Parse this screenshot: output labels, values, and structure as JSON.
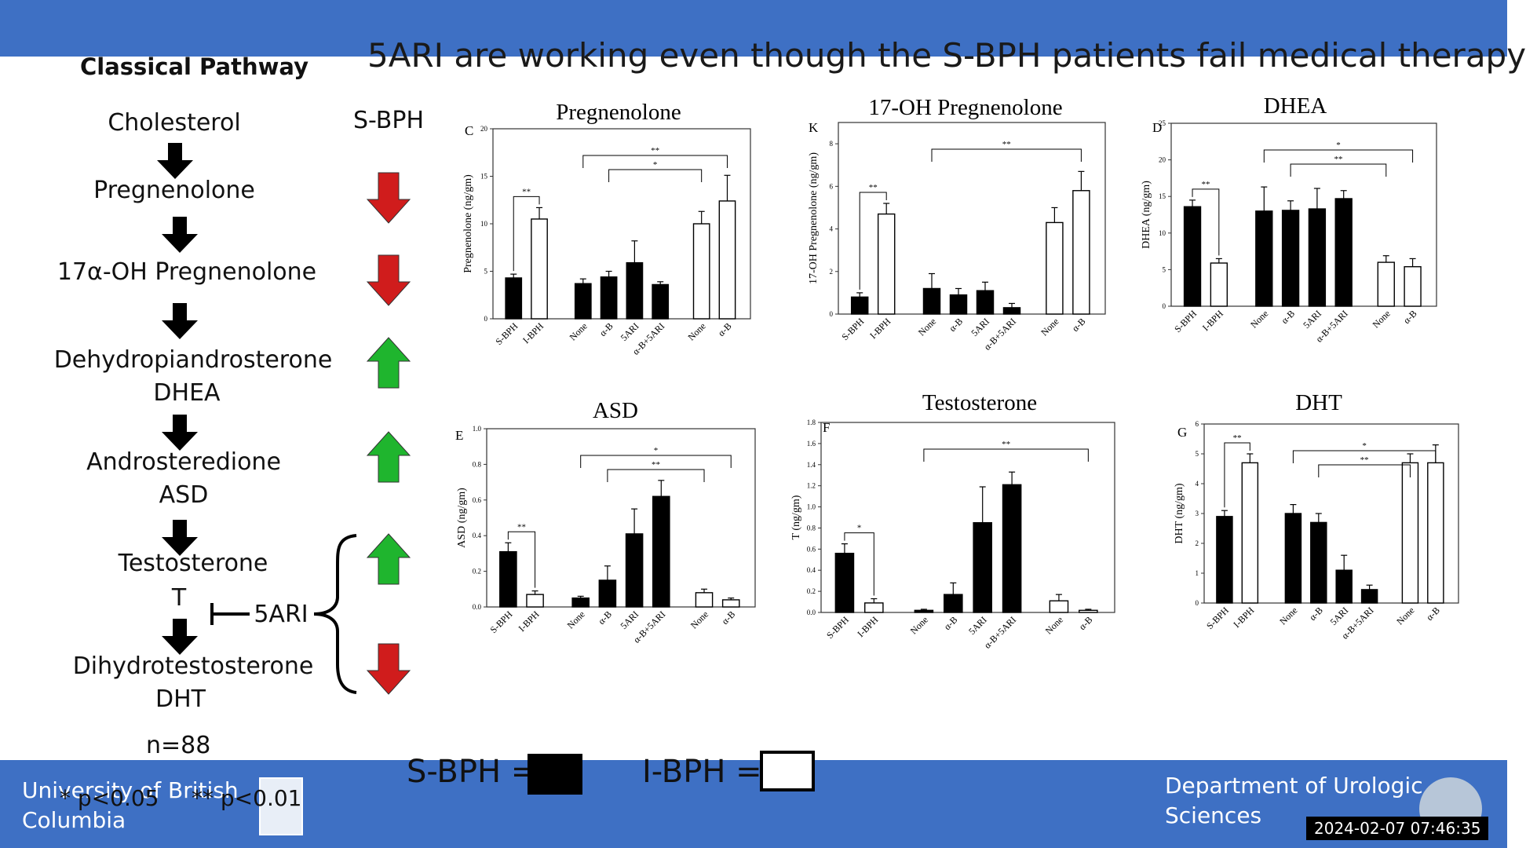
{
  "title": "5ARI are working even though the S-BPH patients fail medical therapy",
  "pathway": {
    "heading": "Classical Pathway",
    "steps": [
      {
        "line1": "Cholesterol"
      },
      {
        "line1": "Pregnenolone"
      },
      {
        "line1": "17α-OH Pregnenolone"
      },
      {
        "line1": "Dehydropiandrosterone",
        "line2": "DHEA"
      },
      {
        "line1": "Androsteredione",
        "line2": "ASD"
      },
      {
        "line1": "Testosterone",
        "line2": "T"
      },
      {
        "line1": "Dihydrotestosterone",
        "line2": "DHT"
      }
    ],
    "inhibitor_label": "5ARI",
    "n_label": "n=88"
  },
  "sbph": {
    "heading": "S-BPH",
    "trends": [
      "down",
      "down",
      "up",
      "up",
      "up",
      "down"
    ],
    "colors": {
      "down": "#d01c1c",
      "up": "#1fb52e"
    }
  },
  "legend": {
    "sbph_label": "S-BPH =",
    "ibph_label": "I-BPH =",
    "p1": "* p<0.05",
    "p2": "** p<0.01"
  },
  "footer": {
    "university_line1": "University of British",
    "university_line2": "Columbia",
    "dept_line1": "Department of Urologic",
    "dept_line2": "Sciences",
    "timestamp": "2024-02-07  07:46:35"
  },
  "chart_data": [
    {
      "type": "bar",
      "panel": "C",
      "title": "Pregnenolone",
      "ylabel": "Pregnenolone (ng/gm)",
      "ylim": [
        0,
        20
      ],
      "yticks": [
        0,
        5,
        10,
        15,
        20
      ],
      "categories": [
        "S-BPH",
        "I-BPH",
        "None",
        "α-B",
        "5ARI",
        "α-B+5ARI",
        "None",
        "α-B"
      ],
      "values": [
        4.3,
        10.5,
        3.7,
        4.4,
        5.9,
        3.6,
        10.0,
        12.4
      ],
      "errors": [
        0.4,
        1.2,
        0.5,
        0.6,
        2.3,
        0.3,
        1.3,
        2.7
      ],
      "fills": [
        "S",
        "I",
        "S",
        "S",
        "S",
        "S",
        "I",
        "I"
      ],
      "annotations": [
        "**",
        "**",
        "*"
      ]
    },
    {
      "type": "bar",
      "panel": "K",
      "title": "17-OH Pregnenolone",
      "ylabel": "17-OH Pregnenolone (ng/gm)",
      "ylim": [
        0,
        9
      ],
      "yticks": [
        0,
        2,
        4,
        6,
        8
      ],
      "categories": [
        "S-BPH",
        "I-BPH",
        "None",
        "α-B",
        "5ARI",
        "α-B+5ARI",
        "None",
        "α-B"
      ],
      "values": [
        0.8,
        4.7,
        1.2,
        0.9,
        1.1,
        0.3,
        4.3,
        5.8
      ],
      "errors": [
        0.2,
        0.5,
        0.7,
        0.3,
        0.4,
        0.2,
        0.7,
        0.9
      ],
      "fills": [
        "S",
        "I",
        "S",
        "S",
        "S",
        "S",
        "I",
        "I"
      ],
      "annotations": [
        "**",
        "**"
      ]
    },
    {
      "type": "bar",
      "panel": "D",
      "title": "DHEA",
      "ylabel": "DHEA (ng/gm)",
      "ylim": [
        0,
        25
      ],
      "yticks": [
        0,
        5,
        10,
        15,
        20,
        25
      ],
      "categories": [
        "S-BPH",
        "I-BPH",
        "None",
        "α-B",
        "5ARI",
        "α-B+5ARI",
        "None",
        "α-B"
      ],
      "values": [
        13.6,
        5.9,
        13.0,
        13.1,
        13.3,
        14.7,
        6.0,
        5.4
      ],
      "errors": [
        0.9,
        0.6,
        3.3,
        1.3,
        2.8,
        1.1,
        0.9,
        1.1
      ],
      "fills": [
        "S",
        "I",
        "S",
        "S",
        "S",
        "S",
        "I",
        "I"
      ],
      "annotations": [
        "**",
        "*",
        "**"
      ]
    },
    {
      "type": "bar",
      "panel": "E",
      "title": "ASD",
      "ylabel": "ASD (ng/gm)",
      "ylim": [
        0,
        1.0
      ],
      "yticks": [
        0.0,
        0.2,
        0.4,
        0.6,
        0.8,
        1.0
      ],
      "categories": [
        "S-BPH",
        "I-BPH",
        "None",
        "α-B",
        "5ARI",
        "α-B+5ARI",
        "None",
        "α-B"
      ],
      "values": [
        0.31,
        0.07,
        0.05,
        0.15,
        0.41,
        0.62,
        0.08,
        0.04
      ],
      "errors": [
        0.05,
        0.02,
        0.01,
        0.08,
        0.14,
        0.09,
        0.02,
        0.01
      ],
      "fills": [
        "S",
        "I",
        "S",
        "S",
        "S",
        "S",
        "I",
        "I"
      ],
      "annotations": [
        "**",
        "*",
        "**"
      ]
    },
    {
      "type": "bar",
      "panel": "F",
      "title": "Testosterone",
      "ylabel": "T (ng/gm)",
      "ylim": [
        0,
        1.8
      ],
      "yticks": [
        0.0,
        0.2,
        0.4,
        0.6,
        0.8,
        1.0,
        1.2,
        1.4,
        1.6,
        1.8
      ],
      "categories": [
        "S-BPH",
        "I-BPH",
        "None",
        "α-B",
        "5ARI",
        "α-B+5ARI",
        "None",
        "α-B"
      ],
      "values": [
        0.56,
        0.09,
        0.02,
        0.17,
        0.85,
        1.21,
        0.11,
        0.02
      ],
      "errors": [
        0.09,
        0.04,
        0.01,
        0.11,
        0.34,
        0.12,
        0.06,
        0.01
      ],
      "fills": [
        "S",
        "I",
        "S",
        "S",
        "S",
        "S",
        "I",
        "I"
      ],
      "annotations": [
        "*",
        "**"
      ]
    },
    {
      "type": "bar",
      "panel": "G",
      "title": "DHT",
      "ylabel": "DHT (ng/gm)",
      "ylim": [
        0,
        6
      ],
      "yticks": [
        0,
        1,
        2,
        3,
        4,
        5,
        6
      ],
      "categories": [
        "S-BPH",
        "I-BPH",
        "None",
        "α-B",
        "5ARI",
        "α-B+5ARI",
        "None",
        "α-B"
      ],
      "values": [
        2.9,
        4.7,
        3.0,
        2.7,
        1.1,
        0.45,
        4.7,
        4.7
      ],
      "errors": [
        0.2,
        0.3,
        0.3,
        0.3,
        0.5,
        0.15,
        0.3,
        0.6
      ],
      "fills": [
        "S",
        "I",
        "S",
        "S",
        "S",
        "S",
        "I",
        "I"
      ],
      "annotations": [
        "**",
        "*",
        "**"
      ]
    }
  ]
}
